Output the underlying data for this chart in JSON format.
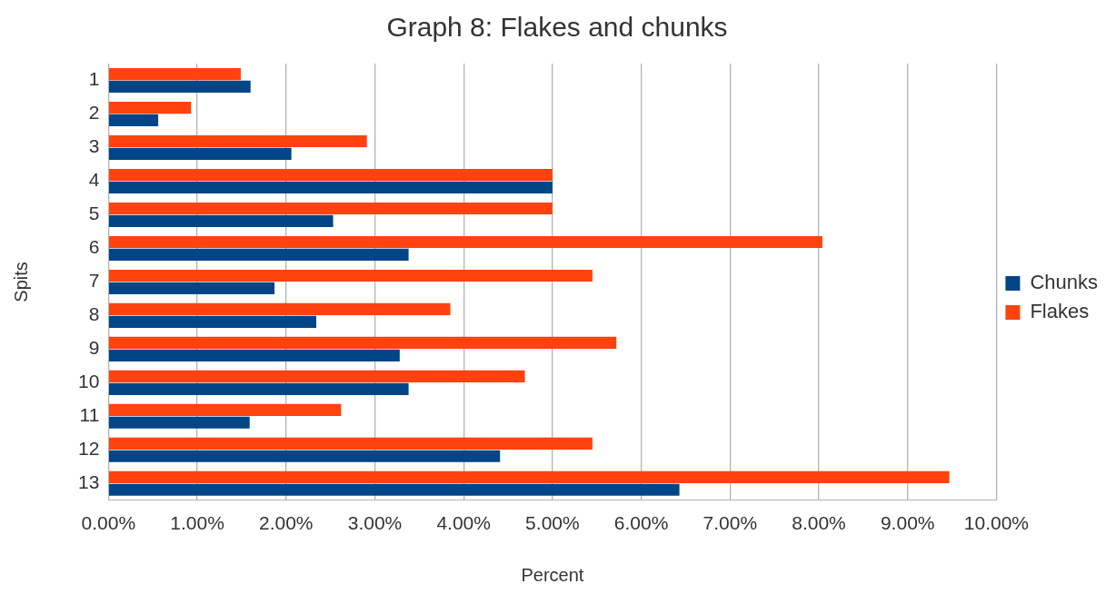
{
  "chart_data": {
    "type": "bar",
    "orientation": "horizontal",
    "title": "Graph 8: Flakes and chunks",
    "xlabel": "Percent",
    "ylabel": "Spits",
    "categories": [
      "1",
      "2",
      "3",
      "4",
      "5",
      "6",
      "7",
      "8",
      "9",
      "10",
      "11",
      "12",
      "13"
    ],
    "series": [
      {
        "name": "Chunks",
        "color": "#004586",
        "values": [
          1.6,
          0.56,
          2.06,
          5.0,
          2.53,
          3.38,
          1.87,
          2.34,
          3.28,
          3.38,
          1.59,
          4.41,
          6.43
        ]
      },
      {
        "name": "Flakes",
        "color": "#ff420e",
        "values": [
          1.49,
          0.93,
          2.91,
          5.0,
          5.0,
          8.04,
          5.45,
          3.85,
          5.72,
          4.69,
          2.62,
          5.45,
          9.47
        ]
      }
    ],
    "xlim": [
      0,
      10
    ],
    "xticks": [
      {
        "value": 0,
        "label": "0.00%"
      },
      {
        "value": 1,
        "label": "1.00%"
      },
      {
        "value": 2,
        "label": "2.00%"
      },
      {
        "value": 3,
        "label": "3.00%"
      },
      {
        "value": 4,
        "label": "4.00%"
      },
      {
        "value": 5,
        "label": "5.00%"
      },
      {
        "value": 6,
        "label": "6.00%"
      },
      {
        "value": 7,
        "label": "7.00%"
      },
      {
        "value": 8,
        "label": "8.00%"
      },
      {
        "value": 9,
        "label": "9.00%"
      },
      {
        "value": 10,
        "label": "10.00%"
      }
    ],
    "grid": "x",
    "legend": "right"
  }
}
